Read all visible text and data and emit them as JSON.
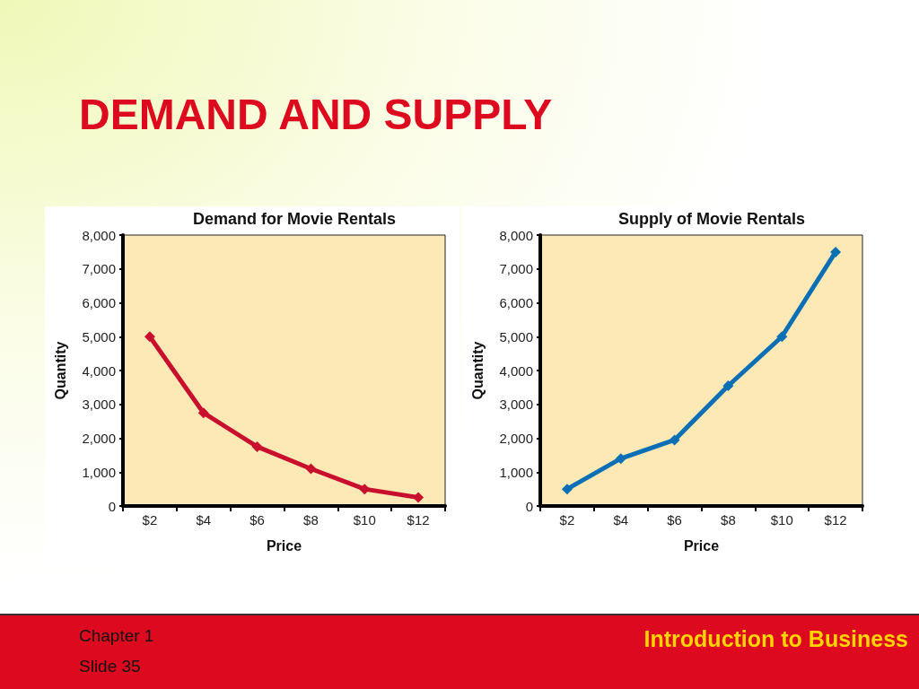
{
  "chart_data": [
    {
      "type": "line",
      "title": "Demand for Movie Rentals",
      "xlabel": "Price",
      "ylabel": "Quantity",
      "categories": [
        "$2",
        "$4",
        "$6",
        "$8",
        "$10",
        "$12"
      ],
      "series": [
        {
          "color": "#c8102e",
          "values": [
            5000,
            2750,
            1750,
            1100,
            500,
            250
          ]
        }
      ],
      "ylim": [
        0,
        8000
      ],
      "yticks": [
        0,
        {
          "value": 1000,
          "label": "1,000"
        },
        {
          "value": 2000,
          "label": "2,000"
        },
        {
          "value": 3000,
          "label": "3,000"
        },
        {
          "value": 4000,
          "label": "4,000"
        },
        {
          "value": 5000,
          "label": "5,000"
        },
        {
          "value": 6000,
          "label": "6,000"
        },
        {
          "value": 7000,
          "label": "7,000"
        },
        {
          "value": 8000,
          "label": "8,000"
        }
      ],
      "marker": "diamond",
      "line_style": "solid"
    },
    {
      "type": "line",
      "title": "Supply of Movie Rentals",
      "xlabel": "Price",
      "ylabel": "Quantity",
      "categories": [
        "$2",
        "$4",
        "$6",
        "$8",
        "$10",
        "$12"
      ],
      "series": [
        {
          "color": "#0b6fb5",
          "values": [
            500,
            1400,
            1950,
            3550,
            5000,
            7500
          ]
        }
      ],
      "ylim": [
        0,
        8000
      ],
      "yticks": [
        0,
        {
          "value": 1000,
          "label": "1,000"
        },
        {
          "value": 2000,
          "label": "2,000"
        },
        {
          "value": 3000,
          "label": "3,000"
        },
        {
          "value": 4000,
          "label": "4,000"
        },
        {
          "value": 5000,
          "label": "5,000"
        },
        {
          "value": 6000,
          "label": "6,000"
        },
        {
          "value": 7000,
          "label": "7,000"
        },
        {
          "value": 8000,
          "label": "8,000"
        }
      ],
      "marker": "diamond",
      "line_style": "solid"
    },
    {
      "type": "other",
      "title": "DEMAND AND SUPPLY",
      "annotations": [
        "Chapter 1",
        "Slide 35",
        "Introduction to Business"
      ]
    }
  ]
}
